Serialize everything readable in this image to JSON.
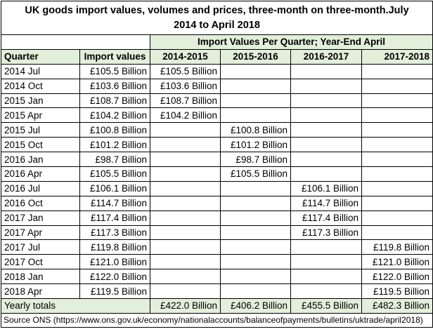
{
  "title_line1": "UK goods import values, volumes and prices, three-month on three-month.July",
  "title_line2": "2014 to April 2018",
  "group_header": "Import Values Per Quarter; Year-End April",
  "col_quarter": "Quarter",
  "col_import": "Import values",
  "year_cols": [
    "2014-2015",
    "2015-2016",
    "2016-2017",
    "2017-2018"
  ],
  "rows": [
    {
      "q": "2014 Jul",
      "v": "£105.5 Billion",
      "y": 0
    },
    {
      "q": "2014 Oct",
      "v": "£103.6 Billion",
      "y": 0
    },
    {
      "q": "2015 Jan",
      "v": "£108.7 Billion",
      "y": 0
    },
    {
      "q": "2015 Apr",
      "v": "£104.2 Billion",
      "y": 0
    },
    {
      "q": "2015 Jul",
      "v": "£100.8 Billion",
      "y": 1
    },
    {
      "q": "2015 Oct",
      "v": "£101.2 Billion",
      "y": 1
    },
    {
      "q": "2016 Jan",
      "v": "£98.7 Billion",
      "y": 1
    },
    {
      "q": "2016 Apr",
      "v": "£105.5 Billion",
      "y": 1
    },
    {
      "q": "2016 Jul",
      "v": "£106.1 Billion",
      "y": 2
    },
    {
      "q": "2016 Oct",
      "v": "£114.7 Billion",
      "y": 2
    },
    {
      "q": "2017 Jan",
      "v": "£117.4 Billion",
      "y": 2
    },
    {
      "q": "2017 Apr",
      "v": "£117.3 Billion",
      "y": 2
    },
    {
      "q": "2017 Jul",
      "v": "£119.8 Billion",
      "y": 3
    },
    {
      "q": "2017 Oct",
      "v": "£121.0 Billion",
      "y": 3
    },
    {
      "q": "2018 Jan",
      "v": "£122.0 Billion",
      "y": 3
    },
    {
      "q": "2018 Apr",
      "v": "£119.5 Billion",
      "y": 3
    }
  ],
  "totals_label": "Yearly totals",
  "totals": [
    "£422.0 Billion",
    "£406.2 Billion",
    "£455.5 Billion",
    "£482.3 Billion"
  ],
  "source": "Source ONS (https://www.ons.gov.uk/economy/nationalaccounts/balanceofpayments/bulletins/uktrade/april2018)",
  "colors": {
    "band": "#e2efda",
    "border": "#000000"
  }
}
